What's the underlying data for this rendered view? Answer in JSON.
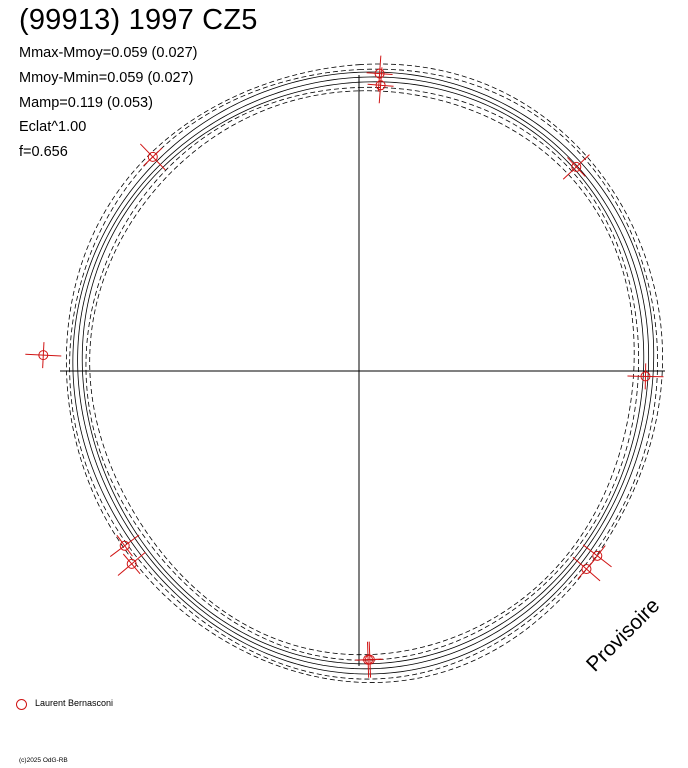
{
  "title": "(99913) 1997 CZ5",
  "stats": [
    "Mmax-Mmoy=0.059 (0.027)",
    "Mmoy-Mmin=0.059 (0.027)",
    "Mamp=0.119 (0.053)",
    "Eclat^1.00",
    "f=0.656"
  ],
  "stamp": "Provisoire",
  "legend": {
    "label": "Laurent Bernasconi",
    "color": "#d01414"
  },
  "copyright": "(c)2025 OdG-RB",
  "chart_data": {
    "type": "scatter",
    "description_kind": "polar lightcurve plot",
    "radial_scale": "brightness^1.00",
    "curves": [
      {
        "style": "solid",
        "count": 3
      },
      {
        "style": "dashed",
        "count": 4
      }
    ],
    "series": [
      {
        "name": "Laurent Bernasconi",
        "color": "#d01414",
        "points": [
          {
            "phase": 0.011,
            "r": 1.028
          },
          {
            "phase": 0.012,
            "r": 0.988
          },
          {
            "phase": 0.13,
            "r": 1.028
          },
          {
            "phase": 0.253,
            "r": 0.988
          },
          {
            "phase": 0.355,
            "r": 1.04
          },
          {
            "phase": 0.364,
            "r": 1.04
          },
          {
            "phase": 0.494,
            "r": 0.996
          },
          {
            "phase": 0.495,
            "r": 0.996
          },
          {
            "phase": 0.638,
            "r": 1.028
          },
          {
            "phase": 0.648,
            "r": 1.008
          },
          {
            "phase": 0.758,
            "r": 1.09
          },
          {
            "phase": 0.878,
            "r": 1.025
          }
        ]
      }
    ]
  }
}
